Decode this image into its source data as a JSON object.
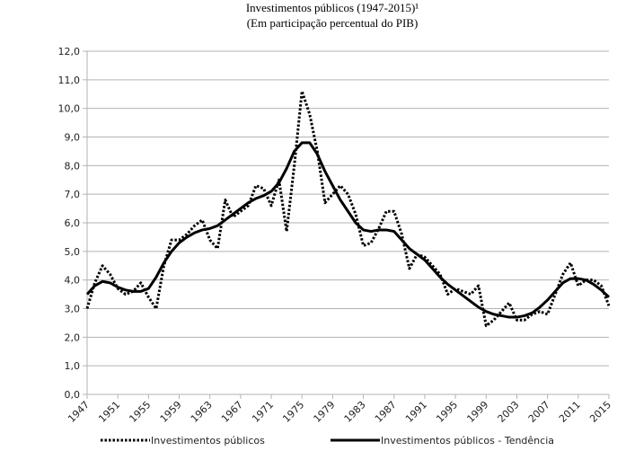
{
  "chart_data": {
    "type": "line",
    "title": "Investimentos públicos (1947-2015)¹",
    "subtitle": "(Em participação percentual do PIB)",
    "x": [
      1947,
      1948,
      1949,
      1950,
      1951,
      1952,
      1953,
      1954,
      1955,
      1956,
      1957,
      1958,
      1959,
      1960,
      1961,
      1962,
      1963,
      1964,
      1965,
      1966,
      1967,
      1968,
      1969,
      1970,
      1971,
      1972,
      1973,
      1974,
      1975,
      1976,
      1977,
      1978,
      1979,
      1980,
      1981,
      1982,
      1983,
      1984,
      1985,
      1986,
      1987,
      1988,
      1989,
      1990,
      1991,
      1992,
      1993,
      1994,
      1995,
      1996,
      1997,
      1998,
      1999,
      2000,
      2001,
      2002,
      2003,
      2004,
      2005,
      2006,
      2007,
      2008,
      2009,
      2010,
      2011,
      2012,
      2013,
      2014,
      2015
    ],
    "series": [
      {
        "name": "Investimentos públicos",
        "color": "#000000",
        "line_style": "dotted",
        "values": [
          3.0,
          3.9,
          4.5,
          4.2,
          3.7,
          3.5,
          3.6,
          3.9,
          3.4,
          3.0,
          4.5,
          5.4,
          5.4,
          5.6,
          5.9,
          6.1,
          5.4,
          5.1,
          6.8,
          6.2,
          6.4,
          6.6,
          7.3,
          7.2,
          6.6,
          7.5,
          5.7,
          8.0,
          10.6,
          9.8,
          8.5,
          6.7,
          7.0,
          7.3,
          7.0,
          6.3,
          5.2,
          5.3,
          5.8,
          6.4,
          6.4,
          5.6,
          4.4,
          4.9,
          4.8,
          4.5,
          4.2,
          3.5,
          3.7,
          3.6,
          3.5,
          3.8,
          2.4,
          2.6,
          2.9,
          3.2,
          2.6,
          2.6,
          2.8,
          2.9,
          2.8,
          3.5,
          4.2,
          4.6,
          3.8,
          4.0,
          4.0,
          3.8,
          3.1
        ]
      },
      {
        "name": "Investimentos públicos - Tendência",
        "color": "#000000",
        "line_style": "solid",
        "values": [
          3.5,
          3.8,
          3.95,
          3.9,
          3.75,
          3.65,
          3.6,
          3.6,
          3.7,
          4.1,
          4.6,
          5.0,
          5.3,
          5.5,
          5.65,
          5.75,
          5.8,
          5.9,
          6.1,
          6.3,
          6.5,
          6.7,
          6.85,
          6.95,
          7.1,
          7.4,
          7.9,
          8.5,
          8.8,
          8.8,
          8.4,
          7.8,
          7.3,
          6.8,
          6.4,
          6.0,
          5.75,
          5.7,
          5.75,
          5.75,
          5.7,
          5.4,
          5.1,
          4.9,
          4.7,
          4.4,
          4.1,
          3.85,
          3.65,
          3.45,
          3.25,
          3.05,
          2.9,
          2.8,
          2.75,
          2.7,
          2.7,
          2.75,
          2.85,
          3.05,
          3.3,
          3.6,
          3.9,
          4.05,
          4.05,
          4.0,
          3.85,
          3.65,
          3.4
        ]
      }
    ],
    "xlim": [
      1947,
      2015
    ],
    "xticks": [
      1947,
      1951,
      1955,
      1959,
      1963,
      1967,
      1971,
      1975,
      1979,
      1983,
      1987,
      1991,
      1995,
      1999,
      2003,
      2007,
      2011,
      2015
    ],
    "ylim": [
      0,
      12
    ],
    "yticks": [
      {
        "value": 0,
        "label": "0,0"
      },
      {
        "value": 1,
        "label": "1,0"
      },
      {
        "value": 2,
        "label": "2,0"
      },
      {
        "value": 3,
        "label": "3,0"
      },
      {
        "value": 4,
        "label": "4,0"
      },
      {
        "value": 5,
        "label": "5,0"
      },
      {
        "value": 6,
        "label": "6,0"
      },
      {
        "value": 7,
        "label": "7,0"
      },
      {
        "value": 8,
        "label": "8,0"
      },
      {
        "value": 9,
        "label": "9,0"
      },
      {
        "value": 10,
        "label": "10,0"
      },
      {
        "value": 11,
        "label": "11,0"
      },
      {
        "value": 12,
        "label": "12,0"
      }
    ],
    "grid": true,
    "legend": "bottom"
  }
}
